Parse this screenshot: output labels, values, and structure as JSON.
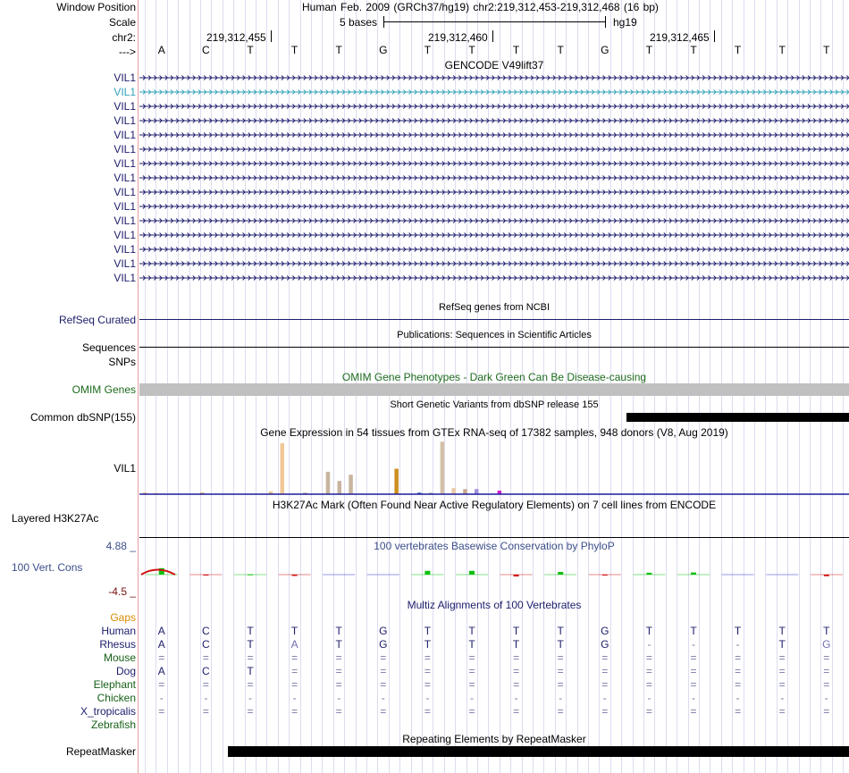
{
  "header": {
    "window_position_label": "Window Position",
    "window_position_value": "Human Feb. 2009 (GRCh37/hg19)   chr2:219,312,453-219,312,468 (16 bp)",
    "scale_label": "Scale",
    "scale_value": "5 bases",
    "assembly": "hg19",
    "chrom_label": "chr2:",
    "positions": [
      "219,312,455",
      "219,312,460",
      "219,312,465"
    ],
    "strand_label": "--->",
    "sequence": [
      "A",
      "C",
      "T",
      "T",
      "T",
      "G",
      "T",
      "T",
      "T",
      "T",
      "G",
      "T",
      "T",
      "T",
      "T",
      "T"
    ]
  },
  "gencode": {
    "title": "GENCODE V49lift37",
    "genes": [
      "VIL1",
      "VIL1",
      "VIL1",
      "VIL1",
      "VIL1",
      "VIL1",
      "VIL1",
      "VIL1",
      "VIL1",
      "VIL1",
      "VIL1",
      "VIL1",
      "VIL1",
      "VIL1",
      "VIL1"
    ],
    "highlight_color": "#31a2b8",
    "gene_color": "#1c1c6c"
  },
  "refseq": {
    "title": "RefSeq genes from NCBI",
    "label": "RefSeq Curated"
  },
  "publications": {
    "title": "Publications: Sequences in Scientific Articles",
    "label": "Sequences"
  },
  "snps": {
    "label": "SNPs"
  },
  "omim": {
    "title": "OMIM Gene Phenotypes - Dark Green Can Be Disease-causing",
    "label": "OMIM Genes",
    "bar_color": "#c0c0c0"
  },
  "dbsnp": {
    "title": "Short Genetic Variants from dbSNP release 155",
    "label": "Common dbSNP(155)"
  },
  "gtex": {
    "title": "Gene Expression in 54 tissues from GTEx RNA-seq of 17382 samples, 948 donors (V8, Aug 2019)",
    "label": "VIL1",
    "bars": [
      {
        "tissue_index": 0,
        "value": 0.02,
        "color": "#eea040"
      },
      {
        "tissue_index": 1,
        "value": 0.02,
        "color": "#ffd480"
      },
      {
        "tissue_index": 5,
        "value": 0.03,
        "color": "#d0a060"
      },
      {
        "tissue_index": 11,
        "value": 0.05,
        "color": "#e8c08a"
      },
      {
        "tissue_index": 12,
        "value": 1.0,
        "color": "#f0c896"
      },
      {
        "tissue_index": 14,
        "value": 0.03,
        "color": "#c4b0a0"
      },
      {
        "tissue_index": 16,
        "value": 0.44,
        "color": "#c8b4a0"
      },
      {
        "tissue_index": 17,
        "value": 0.26,
        "color": "#c8b4a0"
      },
      {
        "tissue_index": 18,
        "value": 0.38,
        "color": "#c8b4a0"
      },
      {
        "tissue_index": 22,
        "value": 0.5,
        "color": "#cc9020"
      },
      {
        "tissue_index": 24,
        "value": 0.03,
        "color": "#3060c0"
      },
      {
        "tissue_index": 25,
        "value": 0.02,
        "color": "#a0a0a0"
      },
      {
        "tissue_index": 26,
        "value": 1.03,
        "color": "#d4c0a8"
      },
      {
        "tissue_index": 27,
        "value": 0.12,
        "color": "#e8c8a8"
      },
      {
        "tissue_index": 28,
        "value": 0.1,
        "color": "#c8a890"
      },
      {
        "tissue_index": 29,
        "value": 0.1,
        "color": "#a090e0"
      },
      {
        "tissue_index": 31,
        "value": 0.07,
        "color": "#d020d0"
      }
    ],
    "tissue_count": 54,
    "baseline_color": "#1c1c9c"
  },
  "h3k27ac": {
    "title": "H3K27Ac Mark (Often Found Near Active Regulatory Elements) on 7 cell lines from ENCODE",
    "label": "Layered H3K27Ac"
  },
  "phylop": {
    "title": "100 vertebrates Basewise Conservation by PhyloP",
    "label": "100 Vert. Cons",
    "max_label": "4.88 _",
    "min_label": "-4.5 _",
    "scores": [
      1.2,
      -0.1,
      0.05,
      -0.25,
      0.0,
      0.0,
      0.7,
      0.7,
      -0.35,
      0.5,
      -0.15,
      0.35,
      0.4,
      0.0,
      0.0,
      -0.3
    ],
    "pos_color": "#10c010",
    "neg_color": "#d01010",
    "base_color": "#3030d0"
  },
  "multiz": {
    "title": "Multiz Alignments of 100 Vertebrates",
    "gaps_label": "Gaps",
    "species": [
      {
        "name": "Human",
        "class": "navy",
        "bases": [
          "A",
          "C",
          "T",
          "T",
          "T",
          "G",
          "T",
          "T",
          "T",
          "T",
          "G",
          "T",
          "T",
          "T",
          "T",
          "T"
        ]
      },
      {
        "name": "Rhesus",
        "class": "navy",
        "bases": [
          "A",
          "C",
          "T",
          "A",
          "T",
          "G",
          "T",
          "T",
          "T",
          "T",
          "G",
          "-",
          "-",
          "-",
          "T",
          "G"
        ]
      },
      {
        "name": "Mouse",
        "class": "darkgreen",
        "bases": [
          "=",
          "=",
          "=",
          "=",
          "=",
          "=",
          "=",
          "=",
          "=",
          "=",
          "=",
          "=",
          "=",
          "=",
          "=",
          "="
        ]
      },
      {
        "name": "Dog",
        "class": "navy",
        "bases": [
          "A",
          "C",
          "T",
          "=",
          "=",
          "=",
          "=",
          "=",
          "=",
          "=",
          "=",
          "=",
          "=",
          "=",
          "=",
          "="
        ]
      },
      {
        "name": "Elephant",
        "class": "darkgreen",
        "bases": [
          "=",
          "=",
          "=",
          "=",
          "=",
          "=",
          "=",
          "=",
          "=",
          "=",
          "=",
          "=",
          "=",
          "=",
          "=",
          "="
        ]
      },
      {
        "name": "Chicken",
        "class": "darkgreen",
        "bases": [
          "-",
          "-",
          "-",
          "-",
          "-",
          "-",
          "-",
          "-",
          "-",
          "-",
          "-",
          "-",
          "-",
          "-",
          "-",
          "-"
        ]
      },
      {
        "name": "X_tropicalis",
        "class": "navy",
        "bases": [
          "=",
          "=",
          "=",
          "=",
          "=",
          "=",
          "=",
          "=",
          "=",
          "=",
          "=",
          "=",
          "=",
          "=",
          "=",
          "="
        ]
      },
      {
        "name": "Zebrafish",
        "class": "darkgreen",
        "bases": [
          "",
          "",
          "",
          "",
          "",
          "",
          "",
          "",
          "",
          "",
          "",
          "",
          "",
          "",
          "",
          ""
        ]
      }
    ]
  },
  "repeatmasker": {
    "title": "Repeating Elements by RepeatMasker",
    "label": "RepeatMasker"
  }
}
